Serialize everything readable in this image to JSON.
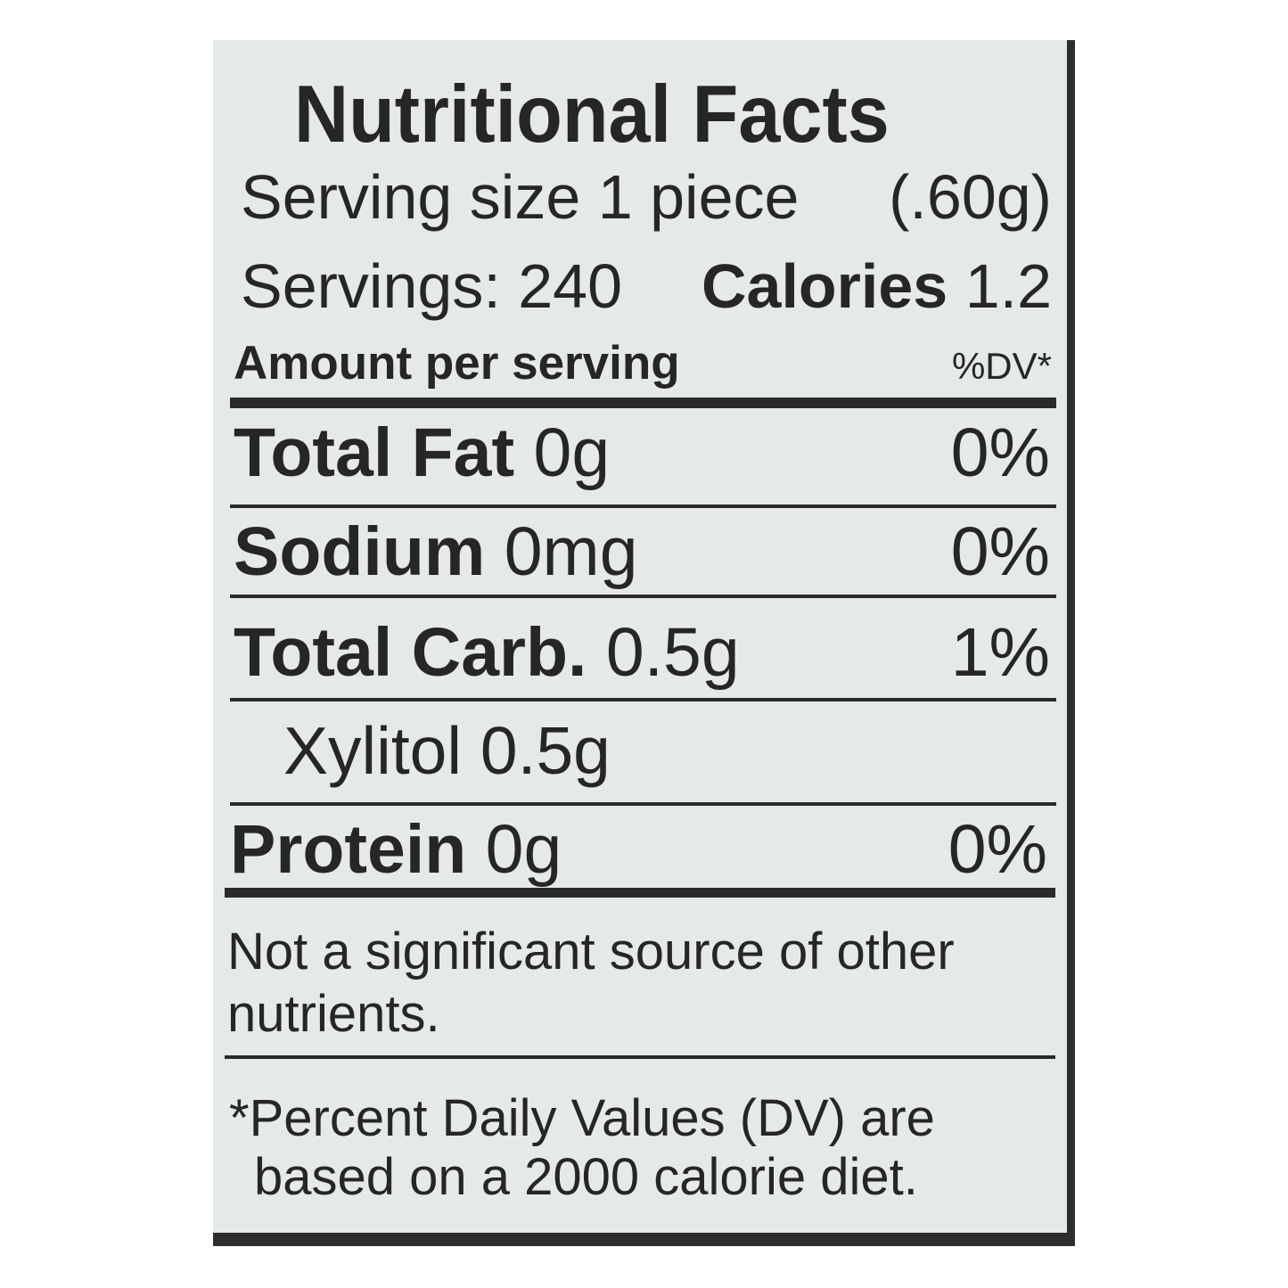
{
  "label": {
    "title": "Nutritional Facts",
    "serving_size_label": "Serving size 1 piece",
    "serving_size_weight": "(.60g)",
    "servings": "Servings: 240",
    "calories_label": "Calories",
    "calories_value": "1.2",
    "amount_header": "Amount per serving",
    "dv_header": "%DV*",
    "nutrients": [
      {
        "name": "Total Fat",
        "amount": "0g",
        "dv": "0%"
      },
      {
        "name": "Sodium",
        "amount": "0mg",
        "dv": "0%"
      },
      {
        "name": "Total Carb.",
        "amount": "0.5g",
        "dv": "1%"
      },
      {
        "name": "Xylitol",
        "amount": "0.5g",
        "dv": ""
      },
      {
        "name": "Protein",
        "amount": "0g",
        "dv": "0%"
      }
    ],
    "note_line1": "Not a significant source of other",
    "note_line2": "nutrients.",
    "footnote_line1": "*Percent Daily Values (DV) are",
    "footnote_line2": "based on a 2000 calorie diet."
  }
}
